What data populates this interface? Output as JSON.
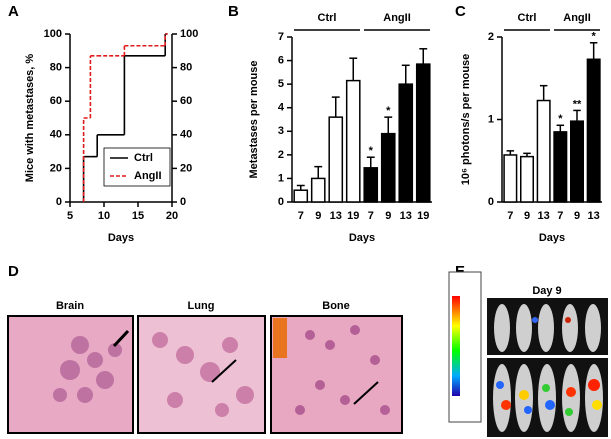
{
  "chart_data": [
    {
      "type": "step",
      "panel_label": "A",
      "xlabel": "Days",
      "ylabel": "Mice with metastases, %",
      "xlim": [
        5,
        20
      ],
      "xticks": [
        5,
        10,
        15,
        20
      ],
      "ylim": [
        0,
        100
      ],
      "yticks": [
        0,
        20,
        40,
        60,
        80,
        100
      ],
      "y2lim": [
        0,
        100
      ],
      "y2ticks": [
        0,
        20,
        40,
        60,
        80,
        100
      ],
      "legend": "lower right",
      "x": [
        7,
        8,
        9,
        13,
        19
      ],
      "series": [
        {
          "name": "Ctrl",
          "color": "#000000",
          "line_style": "solid",
          "values": [
            27,
            27,
            40,
            87,
            100
          ]
        },
        {
          "name": "AngII",
          "color": "#e31a1c",
          "line_style": "dashed",
          "values": [
            50,
            87,
            87,
            93,
            100
          ]
        }
      ]
    },
    {
      "type": "bar",
      "panel_label": "B",
      "xlabel": "Days",
      "ylabel": "Metastases per mouse",
      "ylim": [
        0,
        7
      ],
      "yticks": [
        0,
        1,
        2,
        3,
        4,
        5,
        6,
        7
      ],
      "groups": [
        {
          "name": "Ctrl",
          "color": "#ffffff",
          "categories": [
            "7",
            "9",
            "13",
            "19"
          ],
          "values": [
            0.5,
            1.0,
            3.6,
            5.15
          ],
          "errors": [
            0.2,
            0.5,
            0.85,
            0.95
          ]
        },
        {
          "name": "AngII",
          "color": "#000000",
          "categories": [
            "7",
            "9",
            "13",
            "19"
          ],
          "values": [
            1.45,
            2.9,
            5.0,
            5.85
          ],
          "errors": [
            0.45,
            0.7,
            0.8,
            0.65
          ],
          "annotations": [
            {
              "index": 0,
              "text": "*"
            },
            {
              "index": 1,
              "text": "*"
            }
          ]
        }
      ]
    },
    {
      "type": "bar",
      "panel_label": "C",
      "xlabel": "Days",
      "ylabel": "10⁶ photons/s per mouse",
      "ylim": [
        0,
        2
      ],
      "yticks": [
        0,
        1,
        2
      ],
      "groups": [
        {
          "name": "Ctrl",
          "color": "#ffffff",
          "categories": [
            "7",
            "9",
            "13"
          ],
          "values": [
            0.57,
            0.55,
            1.23
          ],
          "errors": [
            0.05,
            0.04,
            0.18
          ]
        },
        {
          "name": "AngII",
          "color": "#000000",
          "categories": [
            "7",
            "9",
            "13"
          ],
          "values": [
            0.85,
            0.98,
            1.73
          ],
          "errors": [
            0.08,
            0.13,
            0.2
          ],
          "annotations": [
            {
              "index": 0,
              "text": "*"
            },
            {
              "index": 1,
              "text": "**"
            },
            {
              "index": 2,
              "text": "*"
            }
          ]
        }
      ]
    }
  ],
  "panel_d": {
    "label": "D",
    "images": [
      {
        "title": "Brain"
      },
      {
        "title": "Lung"
      },
      {
        "title": "Bone"
      }
    ]
  },
  "panel_e": {
    "label": "E",
    "title": "Day 9"
  }
}
